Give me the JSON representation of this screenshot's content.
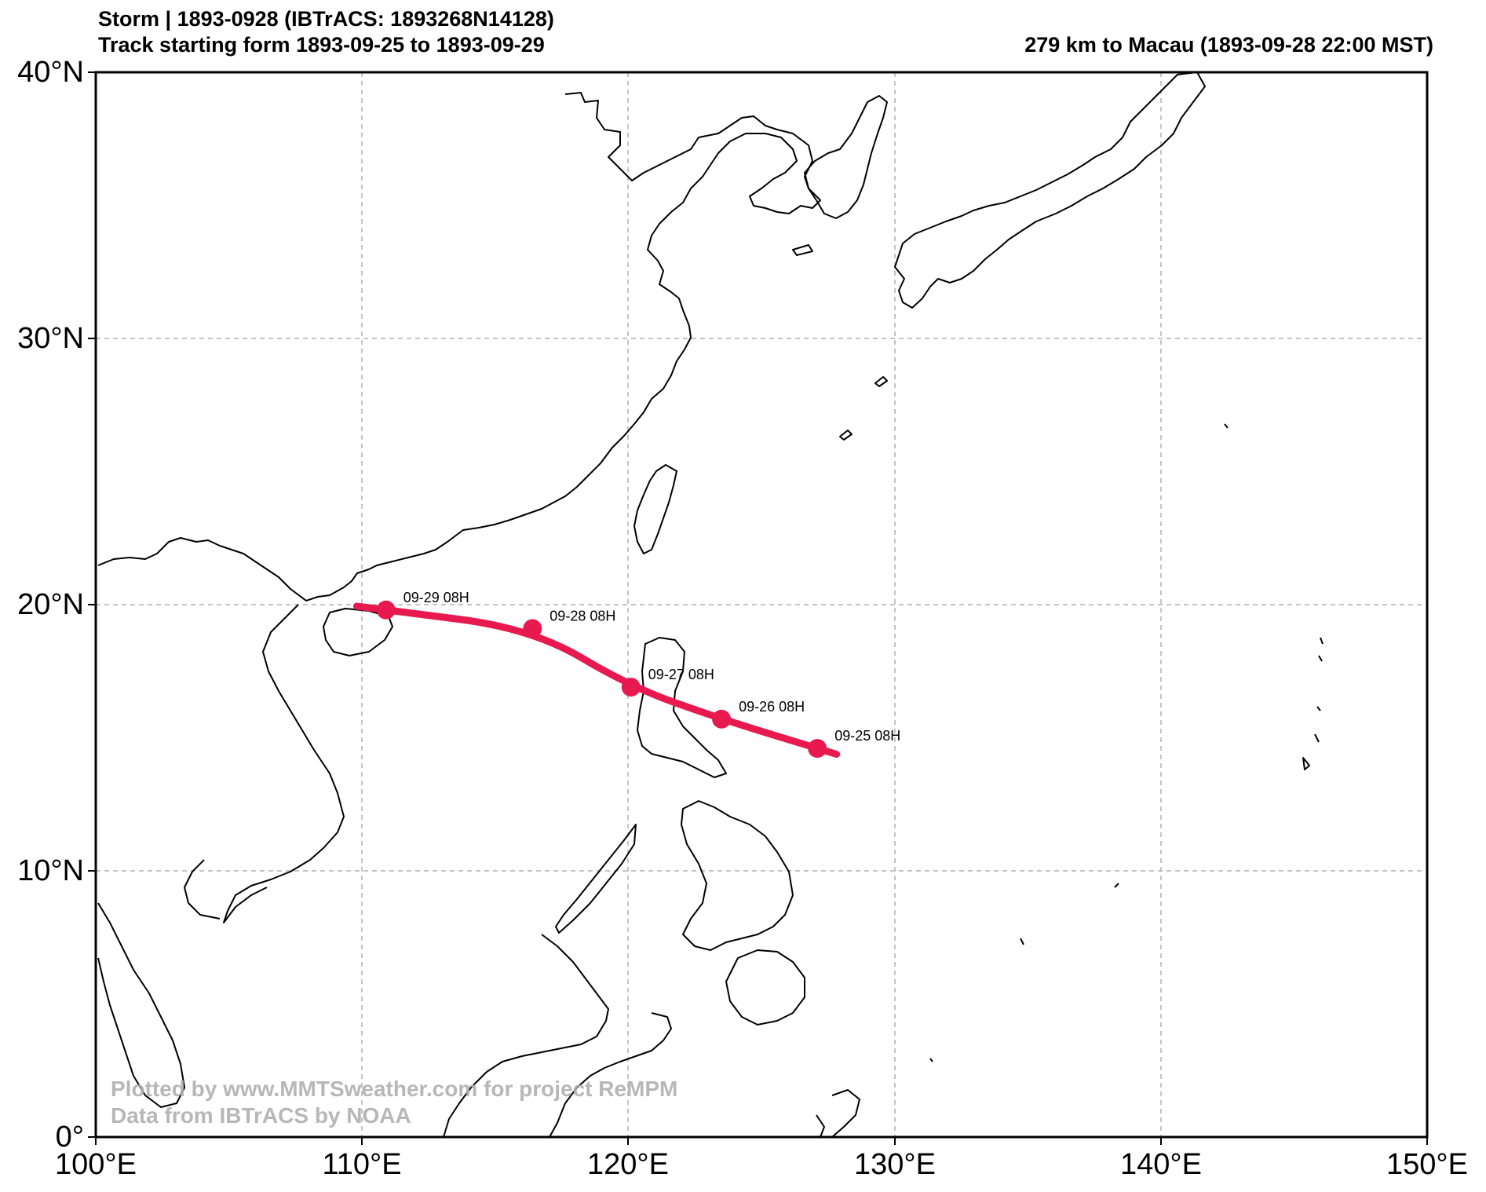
{
  "header": {
    "title_line1": "Storm | 1893-0928 (IBTrACS: 1893268N14128)",
    "title_line2": "Track starting form 1893-09-25 to 1893-09-29",
    "right_info": "279 km to Macau (1893-09-28 22:00 MST)"
  },
  "watermark": {
    "line1": "Plotted by www.MMTSweather.com for project ReMPM",
    "line2": "Data from IBTrACS by NOAA"
  },
  "axes": {
    "lat_ticks": [
      "40°N",
      "30°N",
      "20°N",
      "10°N",
      "0°"
    ],
    "lon_ticks": [
      "100°E",
      "110°E",
      "120°E",
      "130°E",
      "140°E",
      "150°E"
    ]
  },
  "colors": {
    "track": "#e8194f",
    "coast": "#000000",
    "grid": "#b0b0b0"
  },
  "track_points": [
    {
      "label": "09-25 08H",
      "lon": 127.1,
      "lat": 14.6
    },
    {
      "label": "09-26 08H",
      "lon": 123.5,
      "lat": 15.7
    },
    {
      "label": "09-27 08H",
      "lon": 120.1,
      "lat": 16.9
    },
    {
      "label": "09-28 08H",
      "lon": 116.4,
      "lat": 19.1
    },
    {
      "label": "09-29 08H",
      "lon": 110.9,
      "lat": 19.8
    }
  ]
}
